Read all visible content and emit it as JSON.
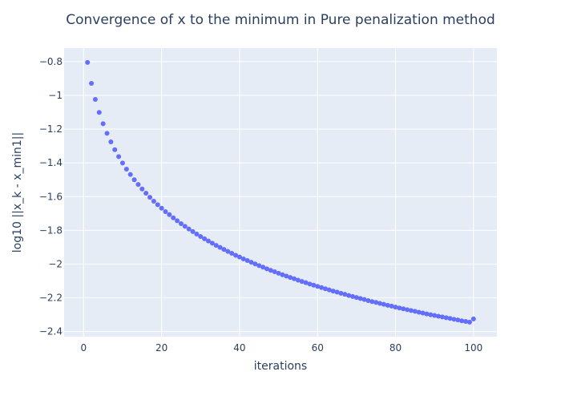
{
  "chart_data": {
    "type": "scatter",
    "title": "Convergence of x to the minimum in Pure penalization method",
    "xlabel": "iterations",
    "ylabel": "log10 ||x_k - x_min1||",
    "xlim": [
      -5,
      106
    ],
    "ylim": [
      -2.43,
      -0.72
    ],
    "xticks": [
      0,
      20,
      40,
      60,
      80,
      100
    ],
    "xtick_labels": [
      "0",
      "20",
      "40",
      "60",
      "80",
      "100"
    ],
    "yticks": [
      -0.8,
      -1.0,
      -1.2,
      -1.4,
      -1.6,
      -1.8,
      -2.0,
      -2.2,
      -2.4
    ],
    "ytick_labels": [
      "−0.8",
      "−1",
      "−1.2",
      "−1.4",
      "−1.6",
      "−1.8",
      "−2",
      "−2.2",
      "−2.4"
    ],
    "grid": true,
    "legend": "none",
    "series": [
      {
        "color": "#636efa",
        "x": [
          1,
          2,
          3,
          4,
          5,
          6,
          7,
          8,
          9,
          10,
          11,
          12,
          13,
          14,
          15,
          16,
          17,
          18,
          19,
          20,
          21,
          22,
          23,
          24,
          25,
          26,
          27,
          28,
          29,
          30,
          31,
          32,
          33,
          34,
          35,
          36,
          37,
          38,
          39,
          40,
          41,
          42,
          43,
          44,
          45,
          46,
          47,
          48,
          49,
          50,
          51,
          52,
          53,
          54,
          55,
          56,
          57,
          58,
          59,
          60,
          61,
          62,
          63,
          64,
          65,
          66,
          67,
          68,
          69,
          70,
          71,
          72,
          73,
          74,
          75,
          76,
          77,
          78,
          79,
          80,
          81,
          82,
          83,
          84,
          85,
          86,
          87,
          88,
          89,
          90,
          91,
          92,
          93,
          94,
          95,
          96,
          97,
          98,
          99,
          100
        ],
        "y": [
          -0.805,
          -0.929,
          -1.024,
          -1.101,
          -1.168,
          -1.225,
          -1.276,
          -1.322,
          -1.363,
          -1.401,
          -1.437,
          -1.469,
          -1.5,
          -1.528,
          -1.555,
          -1.58,
          -1.604,
          -1.627,
          -1.648,
          -1.669,
          -1.689,
          -1.707,
          -1.726,
          -1.743,
          -1.76,
          -1.776,
          -1.792,
          -1.807,
          -1.822,
          -1.836,
          -1.85,
          -1.863,
          -1.876,
          -1.889,
          -1.901,
          -1.913,
          -1.925,
          -1.936,
          -1.948,
          -1.958,
          -1.969,
          -1.979,
          -1.989,
          -1.999,
          -2.009,
          -2.018,
          -2.028,
          -2.037,
          -2.045,
          -2.054,
          -2.063,
          -2.071,
          -2.079,
          -2.087,
          -2.095,
          -2.103,
          -2.11,
          -2.118,
          -2.125,
          -2.132,
          -2.139,
          -2.146,
          -2.153,
          -2.16,
          -2.166,
          -2.173,
          -2.179,
          -2.186,
          -2.192,
          -2.198,
          -2.204,
          -2.21,
          -2.216,
          -2.222,
          -2.227,
          -2.233,
          -2.238,
          -2.244,
          -2.249,
          -2.255,
          -2.26,
          -2.265,
          -2.27,
          -2.275,
          -2.28,
          -2.285,
          -2.29,
          -2.295,
          -2.3,
          -2.304,
          -2.309,
          -2.313,
          -2.318,
          -2.322,
          -2.327,
          -2.331,
          -2.336,
          -2.34,
          -2.344,
          -2.325
        ]
      }
    ]
  },
  "colors": {
    "plot_background": "#e5ecf6",
    "grid": "#ffffff",
    "marker": "#636efa",
    "text": "#2a3f5f"
  }
}
